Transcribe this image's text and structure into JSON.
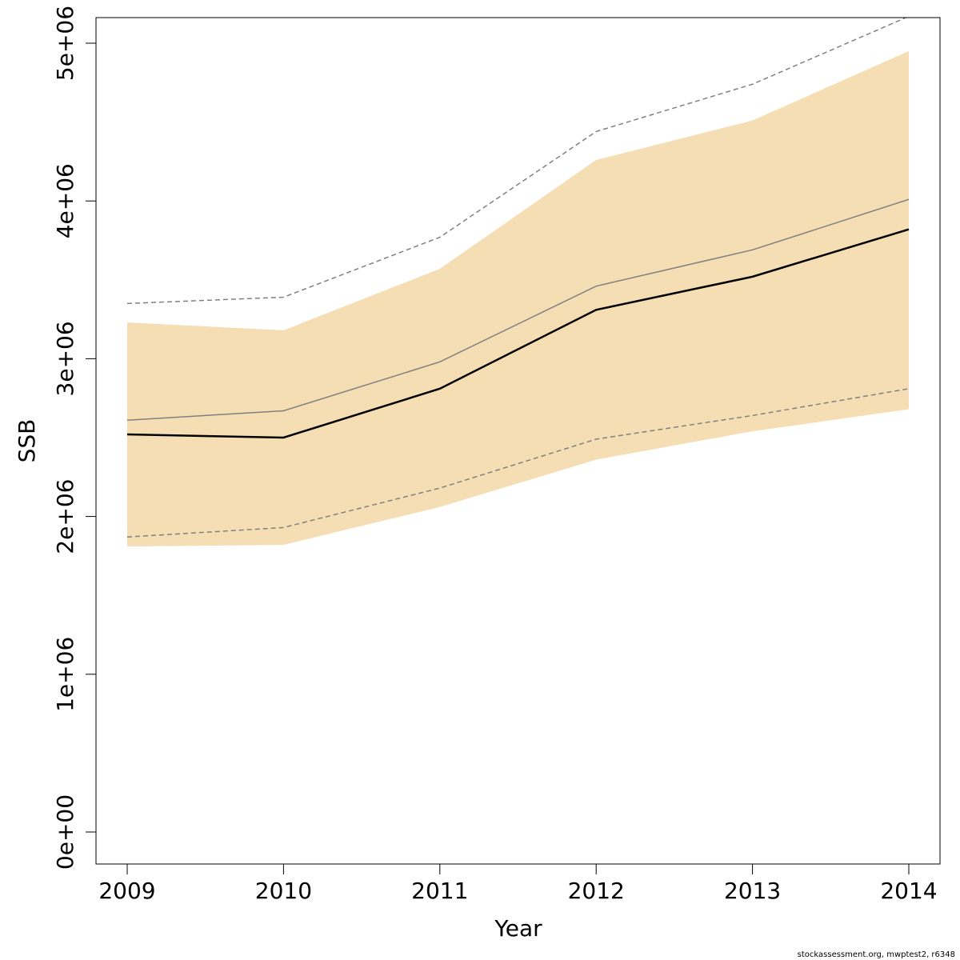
{
  "chart_data": {
    "type": "line",
    "x": [
      2009,
      2010,
      2011,
      2012,
      2013,
      2014
    ],
    "xlabel": "Year",
    "ylabel": "SSB",
    "ylim": [
      0,
      5000000
    ],
    "y_ticks": [
      0,
      1000000,
      2000000,
      3000000,
      4000000,
      5000000
    ],
    "y_tick_labels": [
      "0e+00",
      "1e+06",
      "2e+06",
      "3e+06",
      "4e+06",
      "5e+06"
    ],
    "x_tick_labels": [
      "2009",
      "2010",
      "2011",
      "2012",
      "2013",
      "2014"
    ],
    "grid": false,
    "band": {
      "lower": [
        1810000,
        1820000,
        2060000,
        2360000,
        2540000,
        2680000
      ],
      "upper": [
        3230000,
        3180000,
        3570000,
        4260000,
        4510000,
        4950000
      ],
      "color": "#f5deb3"
    },
    "series": [
      {
        "values": [
          2520000,
          2500000,
          2810000,
          3310000,
          3520000,
          3820000
        ],
        "color": "#000000",
        "style": "solid"
      },
      {
        "values": [
          2610000,
          2670000,
          2980000,
          3460000,
          3690000,
          4010000
        ],
        "color": "#808080",
        "style": "solid"
      },
      {
        "values": [
          3350000,
          3390000,
          3770000,
          4440000,
          4740000,
          5170000
        ],
        "color": "#808080",
        "style": "dashed"
      },
      {
        "values": [
          1870000,
          1930000,
          2180000,
          2490000,
          2640000,
          2810000
        ],
        "color": "#808080",
        "style": "dashed"
      }
    ]
  },
  "footer": "stockassessment.org, mwptest2, r6348"
}
